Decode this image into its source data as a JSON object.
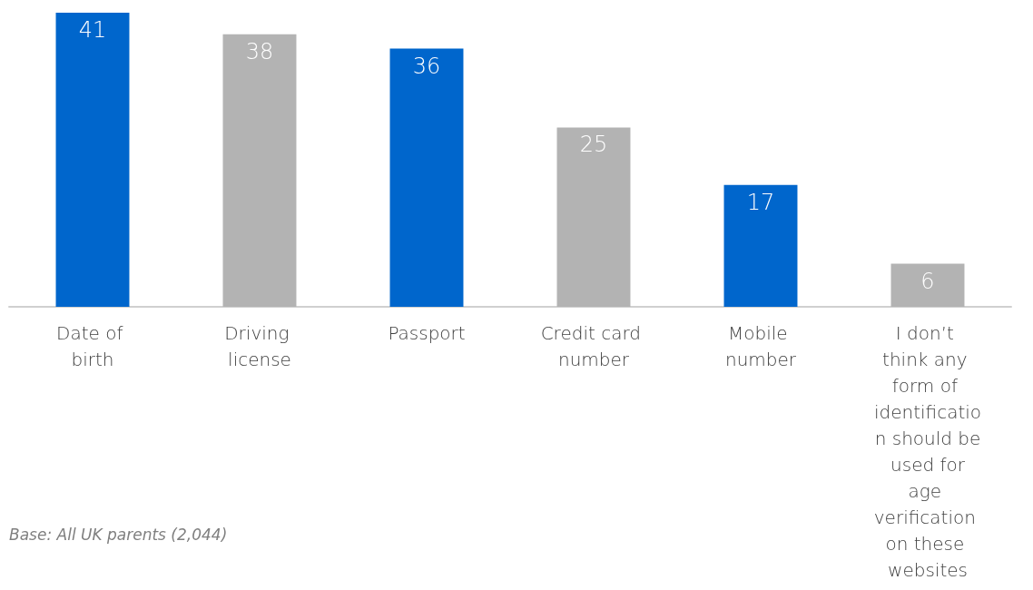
{
  "chart_data": {
    "type": "bar",
    "categories": [
      "Date of birth",
      "Driving license",
      "Passport",
      "Credit card number",
      "Mobile number",
      "I don’t think any form of identification should be used for age verification on these websites"
    ],
    "values": [
      41,
      38,
      36,
      25,
      17,
      6
    ],
    "colors": [
      "#0066cc",
      "#b3b3b3",
      "#0066cc",
      "#b3b3b3",
      "#0066cc",
      "#b3b3b3"
    ],
    "data_labels": true,
    "grid": false,
    "annotations": [
      "Base: All UK parents (2,044)"
    ]
  }
}
